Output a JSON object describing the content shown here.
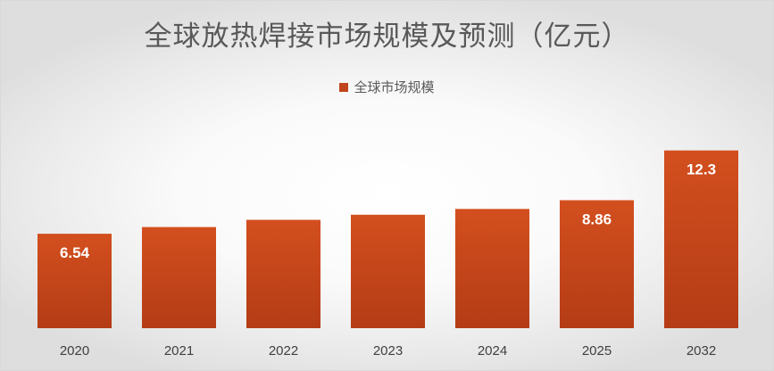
{
  "chart_data": {
    "type": "bar",
    "title": "全球放热焊接市场规模及预测（亿元）",
    "xlabel": "",
    "ylabel": "",
    "categories": [
      "2020",
      "2021",
      "2022",
      "2023",
      "2024",
      "2025",
      "2032"
    ],
    "series": [
      {
        "name": "全球市场规模",
        "values": [
          6.54,
          7.0,
          7.5,
          7.85,
          8.25,
          8.86,
          12.3
        ],
        "data_labels": [
          "6.54",
          "",
          "",
          "",
          "",
          "8.86",
          "12.3"
        ]
      }
    ],
    "ylim": [
      0,
      13
    ],
    "grid": false,
    "legend_position": "top-center",
    "bar_color": "#c0441b",
    "bar_color_light": "#d4501f"
  }
}
